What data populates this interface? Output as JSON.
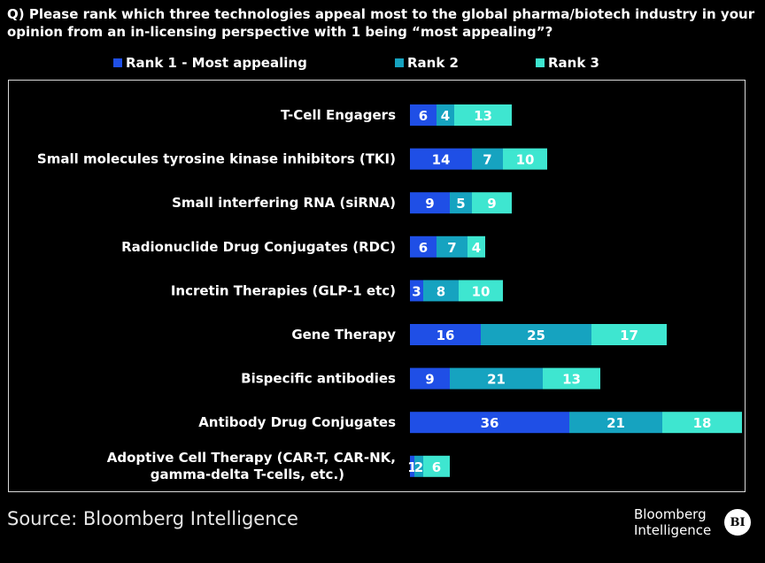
{
  "title": "Q) Please rank which three technologies appeal most to the global pharma/biotech industry in your opinion from an in-licensing perspective with 1 being “most appealing”?",
  "source": "Source: Bloomberg Intelligence",
  "brand": {
    "line1": "Bloomberg",
    "line2": "Intelligence",
    "logo": "BI"
  },
  "colors": {
    "rank1": "#1f4fe6",
    "rank2": "#16a3c0",
    "rank3": "#3ee6d0",
    "background": "#000000",
    "frame": "#d9d9d9"
  },
  "chart_data": {
    "type": "bar",
    "orientation": "horizontal",
    "stacked": true,
    "legend_position": "top",
    "categories": [
      "T-Cell Engagers",
      "Small molecules tyrosine kinase inhibitors (TKI)",
      "Small interfering RNA (siRNA)",
      "Radionuclide Drug Conjugates (RDC)",
      "Incretin Therapies (GLP-1 etc)",
      "Gene Therapy",
      "Bispecific antibodies",
      "Antibody Drug Conjugates",
      "Adoptive Cell Therapy (CAR-T, CAR-NK, gamma-delta T-cells, etc.)"
    ],
    "series": [
      {
        "name": "Rank 1 - Most appealing",
        "values": [
          6,
          14,
          9,
          6,
          3,
          16,
          9,
          36,
          1
        ]
      },
      {
        "name": "Rank 2",
        "values": [
          4,
          7,
          5,
          7,
          8,
          25,
          21,
          21,
          2
        ]
      },
      {
        "name": "Rank 3",
        "values": [
          13,
          10,
          9,
          4,
          10,
          17,
          13,
          18,
          6
        ]
      }
    ],
    "xlim": [
      0,
      75
    ],
    "grid": false
  }
}
